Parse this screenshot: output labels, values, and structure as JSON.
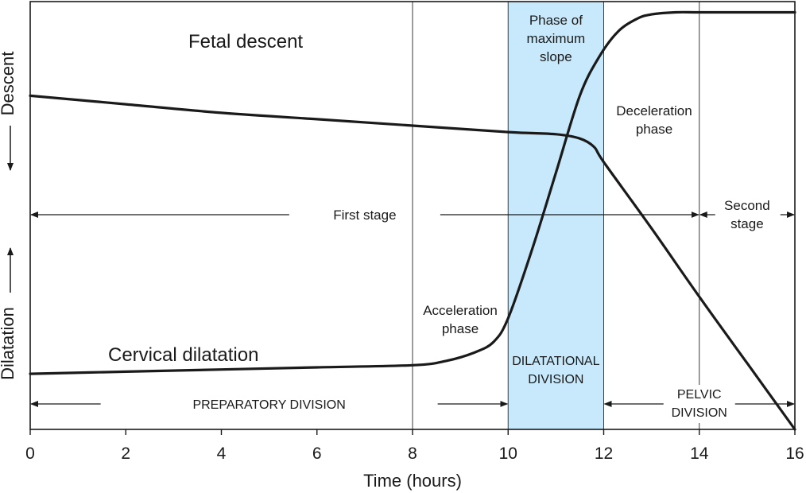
{
  "chart_data": {
    "type": "line",
    "xlabel": "Time (hours)",
    "ylabel_top": "Descent",
    "ylabel_bottom": "Dilatation",
    "xlim": [
      0,
      16
    ],
    "x_ticks": [
      0,
      2,
      4,
      6,
      8,
      10,
      12,
      14,
      16
    ],
    "grid": false,
    "vlines": [
      8,
      10,
      12,
      14
    ],
    "highlight_band": {
      "x": [
        10,
        12
      ],
      "color": "#c7e9fb",
      "label": [
        "Phase of",
        "maximum",
        "slope"
      ]
    },
    "series": [
      {
        "name": "Fetal descent",
        "x": [
          0,
          2,
          4,
          6,
          8,
          10,
          11,
          11.5,
          11.8,
          12,
          13,
          14,
          15,
          16
        ],
        "y": [
          0.78,
          0.76,
          0.74,
          0.725,
          0.71,
          0.695,
          0.69,
          0.68,
          0.66,
          0.625,
          0.47,
          0.31,
          0.155,
          0.0
        ]
      },
      {
        "name": "Cervical dilatation",
        "x": [
          0,
          2,
          4,
          6,
          8,
          8.7,
          9.3,
          9.7,
          10,
          10.5,
          11,
          11.5,
          11.9,
          12.3,
          12.7,
          13,
          13.5,
          14,
          15,
          16
        ],
        "y": [
          0.13,
          0.135,
          0.14,
          0.145,
          0.15,
          0.16,
          0.18,
          0.205,
          0.26,
          0.42,
          0.6,
          0.78,
          0.87,
          0.93,
          0.96,
          0.97,
          0.975,
          0.975,
          0.975,
          0.975
        ]
      }
    ],
    "stage_spans": [
      {
        "label": "First stage",
        "x": [
          0,
          14
        ]
      },
      {
        "label": [
          "Second",
          "stage"
        ],
        "x": [
          14,
          16
        ]
      }
    ],
    "division_spans": [
      {
        "label": "PREPARATORY DIVISION",
        "x": [
          0,
          10
        ]
      },
      {
        "label": [
          "DILATATIONAL",
          "DIVISION"
        ],
        "x": [
          10,
          12
        ]
      },
      {
        "label": [
          "PELVIC",
          "DIVISION"
        ],
        "x": [
          12,
          16
        ]
      }
    ],
    "annotations": {
      "acceleration": [
        "Acceleration",
        "phase"
      ],
      "deceleration": [
        "Deceleration",
        "phase"
      ]
    }
  }
}
